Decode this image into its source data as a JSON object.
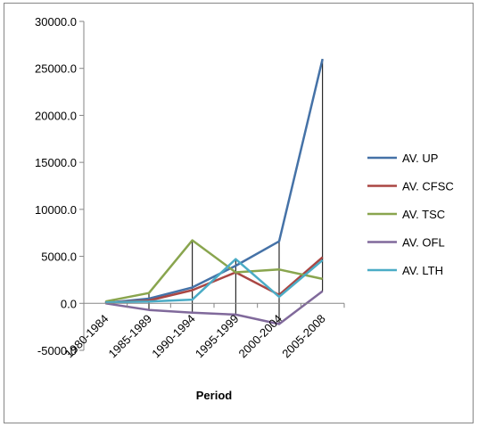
{
  "chart_data": {
    "type": "line",
    "title": "",
    "xlabel": "Period",
    "ylabel": "",
    "categories": [
      "1980-1984",
      "1985-1989",
      "1990-1994",
      "1995-1999",
      "2000-2004",
      "2005-2008"
    ],
    "ylim": [
      -5000,
      30000
    ],
    "yticks": [
      "-5000.0",
      "0.0",
      "5000.0",
      "10000.0",
      "15000.0",
      "20000.0",
      "25000.0",
      "30000.0"
    ],
    "grid": false,
    "legend_position": "right",
    "drop_lines": true,
    "series": [
      {
        "name": "AV. UP",
        "color": "#4572A7",
        "values": [
          50,
          500,
          1700,
          4000,
          6600,
          26000
        ]
      },
      {
        "name": "AV. CFSC",
        "color": "#AA4643",
        "values": [
          100,
          300,
          1400,
          3300,
          900,
          4900
        ]
      },
      {
        "name": "AV. TSC",
        "color": "#89A54E",
        "values": [
          200,
          1100,
          6700,
          3300,
          3600,
          2600
        ]
      },
      {
        "name": "AV. OFL",
        "color": "#80699B",
        "values": [
          0,
          -700,
          -1000,
          -1200,
          -2200,
          1300
        ]
      },
      {
        "name": "AV. LTH",
        "color": "#4BACC6",
        "values": [
          100,
          200,
          400,
          4700,
          700,
          4600
        ]
      }
    ]
  }
}
